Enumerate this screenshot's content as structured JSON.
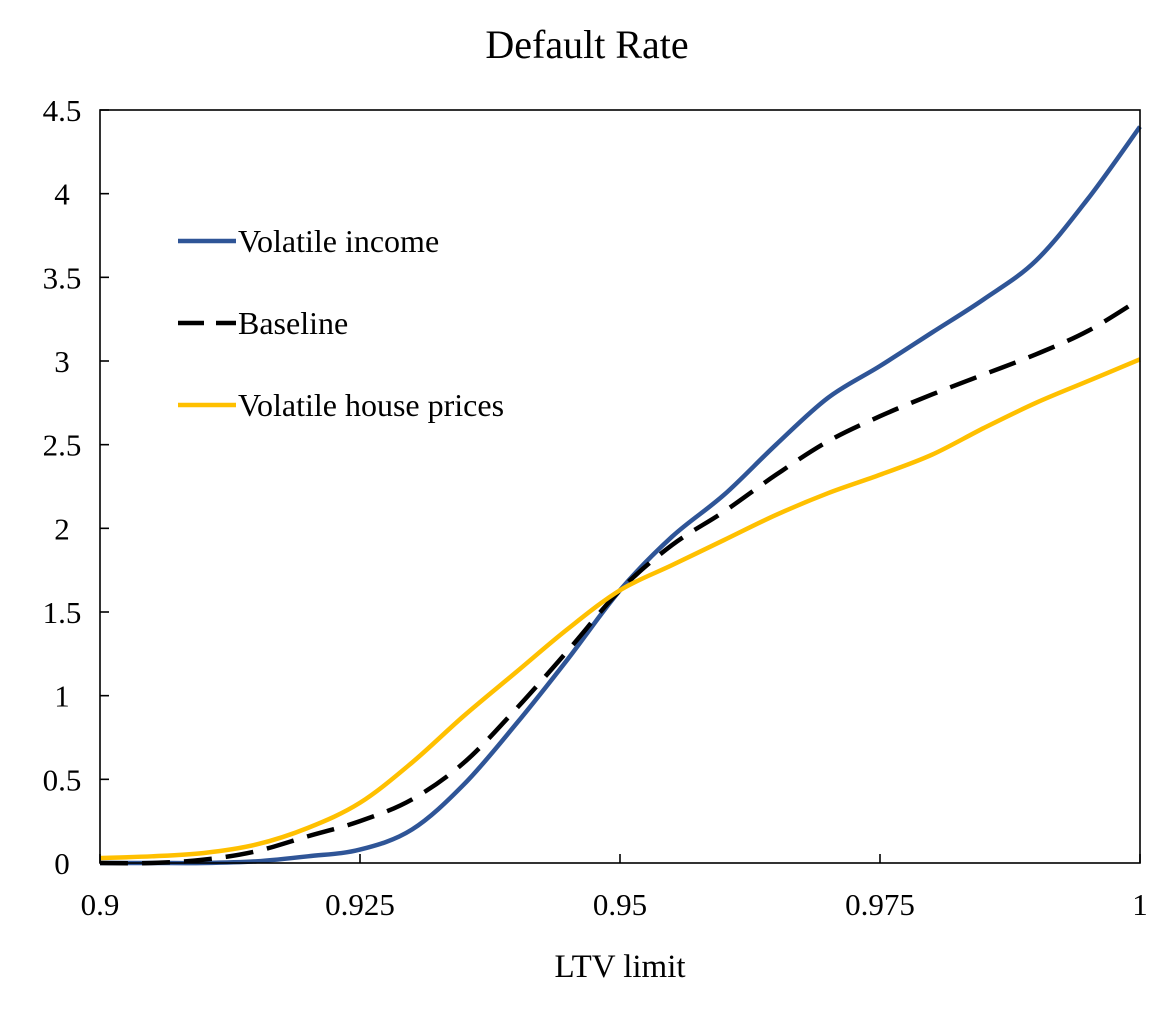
{
  "chart_data": {
    "type": "line",
    "title": "Default Rate",
    "xlabel": "LTV limit",
    "ylabel": "",
    "xlim": [
      0.9,
      1.0
    ],
    "ylim": [
      0,
      4.5
    ],
    "x_ticks": [
      "0.9",
      "0.925",
      "0.95",
      "0.975",
      "1"
    ],
    "y_ticks": [
      "0",
      "0.5",
      "1",
      "1.5",
      "2",
      "2.5",
      "3",
      "3.5",
      "4",
      "4.5"
    ],
    "grid": false,
    "legend_position": "upper-left inside",
    "series": [
      {
        "name": "Volatile income",
        "color": "#2f5597",
        "dash": "solid",
        "x": [
          0.9,
          0.905,
          0.91,
          0.915,
          0.92,
          0.925,
          0.93,
          0.935,
          0.94,
          0.945,
          0.95,
          0.955,
          0.96,
          0.965,
          0.97,
          0.975,
          0.98,
          0.985,
          0.99,
          0.995,
          1.0
        ],
        "y": [
          0.0,
          0.0,
          0.0,
          0.01,
          0.04,
          0.08,
          0.2,
          0.47,
          0.83,
          1.22,
          1.63,
          1.95,
          2.2,
          2.5,
          2.78,
          2.97,
          3.17,
          3.37,
          3.6,
          3.97,
          4.4
        ]
      },
      {
        "name": "Baseline",
        "color": "#000000",
        "dash": "dashed",
        "x": [
          0.9,
          0.905,
          0.91,
          0.915,
          0.92,
          0.925,
          0.93,
          0.935,
          0.94,
          0.945,
          0.95,
          0.955,
          0.96,
          0.965,
          0.97,
          0.975,
          0.98,
          0.985,
          0.99,
          0.995,
          1.0
        ],
        "y": [
          0.0,
          0.0,
          0.02,
          0.07,
          0.16,
          0.25,
          0.38,
          0.6,
          0.92,
          1.27,
          1.63,
          1.9,
          2.1,
          2.32,
          2.52,
          2.67,
          2.8,
          2.92,
          3.04,
          3.18,
          3.37
        ]
      },
      {
        "name": "Volatile house prices",
        "color": "#ffc000",
        "dash": "solid",
        "x": [
          0.9,
          0.905,
          0.91,
          0.915,
          0.92,
          0.925,
          0.93,
          0.935,
          0.94,
          0.945,
          0.95,
          0.955,
          0.96,
          0.965,
          0.97,
          0.975,
          0.98,
          0.985,
          0.99,
          0.995,
          1.0
        ],
        "y": [
          0.03,
          0.04,
          0.06,
          0.11,
          0.21,
          0.36,
          0.6,
          0.88,
          1.14,
          1.4,
          1.63,
          1.78,
          1.93,
          2.08,
          2.21,
          2.32,
          2.44,
          2.6,
          2.75,
          2.88,
          3.01
        ]
      }
    ]
  }
}
